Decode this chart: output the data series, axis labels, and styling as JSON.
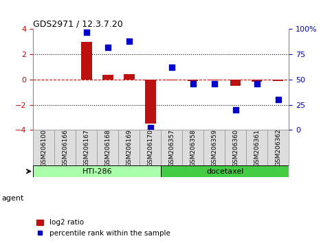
{
  "title": "GDS2971 / 12.3.7.20",
  "categories": [
    "GSM206100",
    "GSM206166",
    "GSM206167",
    "GSM206168",
    "GSM206169",
    "GSM206170",
    "GSM206357",
    "GSM206358",
    "GSM206359",
    "GSM206360",
    "GSM206361",
    "GSM206362"
  ],
  "log2_ratio": [
    0.0,
    0.0,
    3.0,
    0.4,
    0.45,
    -3.5,
    -0.05,
    -0.1,
    -0.05,
    -0.5,
    -0.15,
    -0.1
  ],
  "percentile_rank": [
    null,
    null,
    97,
    82,
    88,
    2,
    62,
    46,
    46,
    20,
    46,
    30
  ],
  "groups": [
    {
      "label": "HTI-286",
      "start": 0,
      "end": 5,
      "color": "#aaffaa"
    },
    {
      "label": "docetaxel",
      "start": 6,
      "end": 11,
      "color": "#44cc44"
    }
  ],
  "bar_color": "#bb1111",
  "scatter_color": "#0000cc",
  "ylim_left": [
    -4,
    4
  ],
  "ylim_right": [
    0,
    100
  ],
  "yticks_left": [
    -4,
    -2,
    0,
    2,
    4
  ],
  "yticks_right": [
    0,
    25,
    50,
    75,
    100
  ],
  "yticklabels_right": [
    "0",
    "25",
    "50",
    "75",
    "100%"
  ],
  "hline_color": "#cc0000",
  "dotted_lines": [
    -2,
    2
  ],
  "dotted_color": "black",
  "agent_label": "agent",
  "legend_bar_label": "log2 ratio",
  "legend_scatter_label": "percentile rank within the sample",
  "bg_color": "#ffffff",
  "plot_bg_color": "#ffffff",
  "tick_label_color_left": "#cc0000",
  "tick_label_color_right": "#0000bb",
  "bar_width": 0.5,
  "scatter_size": 40,
  "label_box_color": "#dddddd",
  "label_box_edge": "#888888"
}
